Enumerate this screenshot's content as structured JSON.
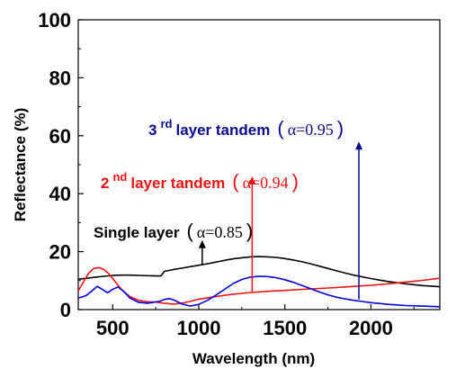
{
  "chart_data": {
    "type": "line",
    "xlabel": "Wavelength (nm)",
    "ylabel": "Reflectance (%)",
    "xlim": [
      300,
      2400
    ],
    "ylim": [
      0,
      100
    ],
    "x_ticks": [
      500,
      1000,
      1500,
      2000
    ],
    "y_ticks": [
      0,
      20,
      40,
      60,
      80,
      100
    ],
    "x_tick_labels": [
      "500",
      "1000",
      "1500",
      "2000"
    ],
    "y_tick_labels": [
      "0",
      "20",
      "40",
      "60",
      "80",
      "100"
    ],
    "grid": false,
    "legend": "none",
    "series": [
      {
        "color": "#000000",
        "x": [
          300,
          350,
          400,
          450,
          500,
          550,
          600,
          650,
          700,
          750,
          780,
          800,
          850,
          900,
          950,
          1000,
          1050,
          1100,
          1150,
          1200,
          1250,
          1300,
          1350,
          1400,
          1450,
          1500,
          1550,
          1600,
          1650,
          1700,
          1750,
          1800,
          1850,
          1900,
          1950,
          2000,
          2050,
          2100,
          2150,
          2200,
          2250,
          2300,
          2350,
          2400
        ],
        "y": [
          10.5,
          10.8,
          11.2,
          11.5,
          11.8,
          11.9,
          11.9,
          11.8,
          11.7,
          11.6,
          11.6,
          13.2,
          13.8,
          14.3,
          14.8,
          15.3,
          15.8,
          16.4,
          17.0,
          17.5,
          17.9,
          18.2,
          18.3,
          18.2,
          18.0,
          17.6,
          17.1,
          16.5,
          15.8,
          15.0,
          14.2,
          13.4,
          12.6,
          11.9,
          11.3,
          10.7,
          10.2,
          9.7,
          9.3,
          8.9,
          8.6,
          8.3,
          8.1,
          7.9
        ]
      },
      {
        "color": "#ee1111",
        "x": [
          300,
          330,
          360,
          390,
          420,
          450,
          480,
          510,
          550,
          600,
          650,
          700,
          750,
          800,
          850,
          900,
          950,
          1000,
          1100,
          1200,
          1300,
          1400,
          1500,
          1600,
          1700,
          1800,
          1900,
          2000,
          2100,
          2200,
          2300,
          2400
        ],
        "y": [
          6.5,
          9.5,
          12.5,
          14.2,
          14.5,
          13.8,
          12.2,
          10.0,
          7.0,
          4.5,
          3.2,
          2.7,
          2.6,
          2.2,
          1.9,
          2.2,
          2.8,
          3.6,
          4.5,
          5.3,
          5.9,
          6.3,
          6.6,
          7.0,
          7.3,
          7.6,
          8.0,
          8.4,
          8.9,
          9.5,
          10.1,
          10.8
        ]
      },
      {
        "color": "#0000dd",
        "x": [
          300,
          330,
          350,
          380,
          410,
          440,
          470,
          500,
          530,
          560,
          600,
          650,
          700,
          750,
          780,
          800,
          830,
          860,
          900,
          950,
          1000,
          1050,
          1100,
          1150,
          1200,
          1250,
          1300,
          1350,
          1400,
          1450,
          1500,
          1550,
          1600,
          1650,
          1700,
          1750,
          1800,
          1850,
          1900,
          1950,
          2000,
          2050,
          2100,
          2150,
          2200,
          2300,
          2400
        ],
        "y": [
          4.0,
          4.5,
          5.0,
          6.5,
          8.0,
          7.0,
          5.8,
          7.0,
          7.8,
          6.5,
          4.0,
          2.5,
          2.2,
          2.6,
          3.0,
          3.5,
          3.8,
          3.2,
          2.0,
          1.2,
          1.8,
          3.2,
          5.0,
          7.0,
          9.0,
          10.4,
          11.2,
          11.5,
          11.4,
          11.0,
          10.3,
          9.4,
          8.3,
          7.2,
          6.1,
          5.1,
          4.3,
          3.7,
          3.2,
          2.8,
          2.4,
          2.1,
          1.8,
          1.6,
          1.4,
          1.2,
          1.0
        ]
      }
    ],
    "annotations": [
      {
        "color": "#000000",
        "text": "Single layer",
        "paren_open": "(",
        "alpha": "α=0.85",
        "paren_close": ")",
        "arrow_x": 1020,
        "arrow_y_from": 15.5,
        "arrow_y_to": 24
      },
      {
        "color": "#ee1111",
        "number": "2",
        "sup": "nd",
        "text": " layer tandem",
        "paren_open": "(",
        "alpha": "α=0.94",
        "paren_close": ")",
        "arrow_x": 1310,
        "arrow_y_from": 6.0,
        "arrow_y_to": 46
      },
      {
        "color": "#0a0a8c",
        "number": "3",
        "sup": "rd",
        "text": " layer tandem",
        "paren_open": "(",
        "alpha": "α=0.95",
        "paren_close": ")",
        "arrow_x": 1930,
        "arrow_y_from": 3.5,
        "arrow_y_to": 58
      }
    ]
  }
}
